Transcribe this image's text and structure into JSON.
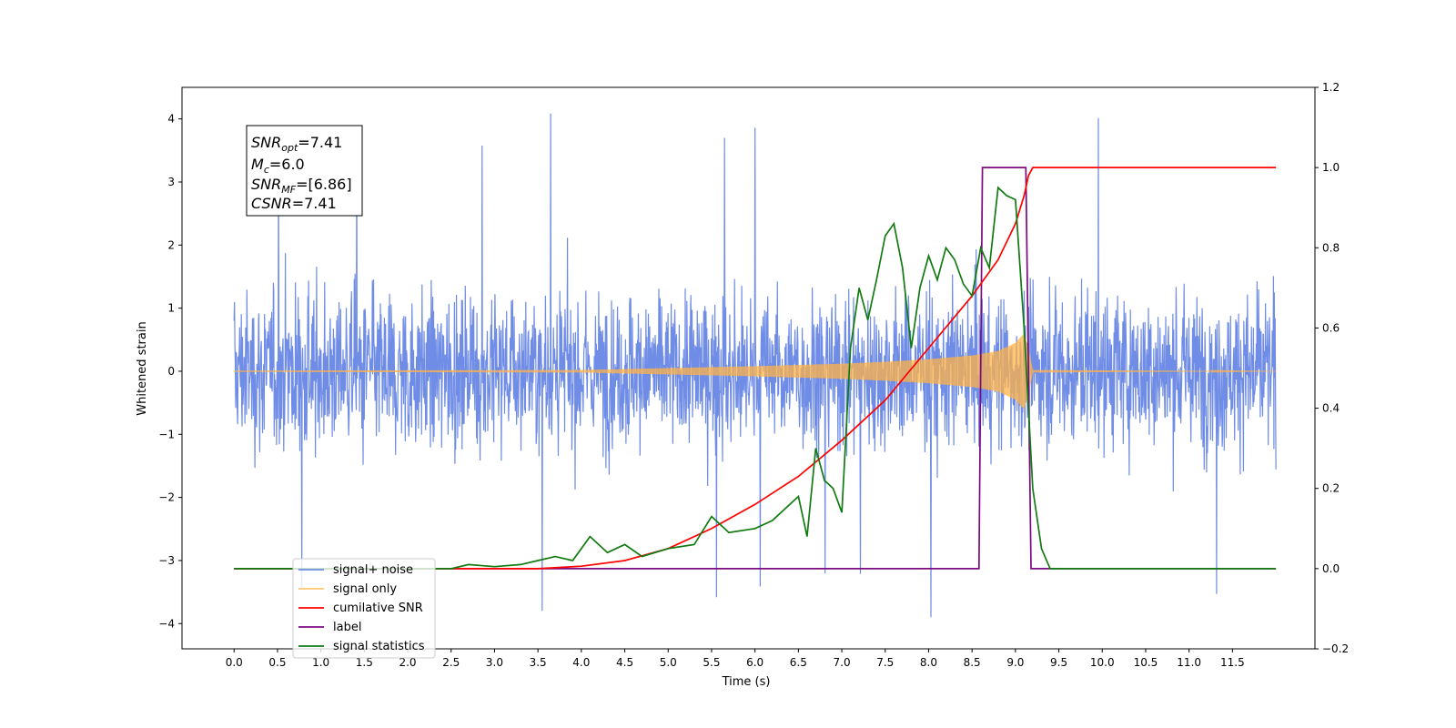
{
  "chart_data": {
    "type": "line",
    "xlabel": "Time (s)",
    "ylabel": "Whitened strain",
    "xlim": [
      -0.6,
      12.45
    ],
    "ylim": [
      -4.4,
      4.5
    ],
    "y2lim": [
      -0.2,
      1.2
    ],
    "grid": false,
    "legend_position": "lower-left",
    "x_ticks": [
      "0.0",
      "0.5",
      "1.0",
      "1.5",
      "2.0",
      "2.5",
      "3.0",
      "3.5",
      "4.0",
      "4.5",
      "5.0",
      "5.5",
      "6.0",
      "6.5",
      "7.0",
      "7.5",
      "8.0",
      "8.5",
      "9.0",
      "9.5",
      "10.0",
      "10.5",
      "11.0",
      "11.5"
    ],
    "y_ticks": [
      "4",
      "3",
      "2",
      "1",
      "0",
      "−1",
      "−2",
      "−3",
      "−4"
    ],
    "y2_ticks": [
      "1.2",
      "1.0",
      "0.8",
      "0.6",
      "0.4",
      "0.2",
      "0.0",
      "−0.2"
    ],
    "annotation": {
      "snr_opt": "=7.41",
      "mc": "=6.0",
      "snr_mf": "=[6.86]",
      "csnr": "=7.41"
    },
    "series": [
      {
        "name": "signal+ noise",
        "color": "#6f8ce6",
        "axis": "left",
        "description": "whitened noise, approx uniform spread between about -2.5 and 2.5 with spikes to 4.1 and -3.9",
        "x_range": [
          0.0,
          12.0
        ]
      },
      {
        "name": "signal only",
        "color": "#ffb347",
        "axis": "left",
        "envelope": {
          "x": [
            0.0,
            4.0,
            5.0,
            6.0,
            7.0,
            7.5,
            8.0,
            8.5,
            8.8,
            9.0,
            9.1,
            9.15,
            9.2,
            12.0
          ],
          "amp": [
            0.01,
            0.02,
            0.05,
            0.08,
            0.12,
            0.15,
            0.19,
            0.25,
            0.32,
            0.45,
            0.6,
            0.35,
            0.02,
            0.0
          ]
        }
      },
      {
        "name": "cumilative SNR",
        "color": "#ff0000",
        "axis": "right",
        "x": [
          0.0,
          3.5,
          4.0,
          4.5,
          5.0,
          5.5,
          6.0,
          6.5,
          7.0,
          7.5,
          8.0,
          8.5,
          8.8,
          9.0,
          9.1,
          9.15,
          9.2,
          12.0
        ],
        "y": [
          0.0,
          0.0,
          0.006,
          0.02,
          0.05,
          0.1,
          0.16,
          0.23,
          0.32,
          0.42,
          0.55,
          0.68,
          0.77,
          0.86,
          0.93,
          0.98,
          1.0,
          1.0
        ]
      },
      {
        "name": "label",
        "color": "#7b0a82",
        "axis": "right",
        "x": [
          0.0,
          8.58,
          8.62,
          9.12,
          9.18,
          12.0
        ],
        "y": [
          0.0,
          0.0,
          1.0,
          1.0,
          0.0,
          0.0
        ]
      },
      {
        "name": "signal statistics",
        "color": "#117a11",
        "axis": "right",
        "x": [
          0.0,
          2.5,
          2.7,
          3.0,
          3.3,
          3.5,
          3.7,
          3.9,
          4.1,
          4.3,
          4.5,
          4.7,
          5.0,
          5.3,
          5.5,
          5.7,
          6.0,
          6.2,
          6.5,
          6.6,
          6.7,
          6.8,
          6.9,
          7.0,
          7.1,
          7.2,
          7.3,
          7.4,
          7.5,
          7.6,
          7.7,
          7.8,
          7.9,
          8.0,
          8.1,
          8.2,
          8.3,
          8.4,
          8.5,
          8.6,
          8.7,
          8.8,
          8.9,
          9.0,
          9.1,
          9.2,
          9.3,
          9.4,
          9.5,
          12.0
        ],
        "y": [
          0.0,
          0.0,
          0.01,
          0.005,
          0.01,
          0.02,
          0.03,
          0.02,
          0.08,
          0.04,
          0.06,
          0.03,
          0.05,
          0.06,
          0.13,
          0.09,
          0.1,
          0.12,
          0.18,
          0.08,
          0.3,
          0.22,
          0.2,
          0.14,
          0.55,
          0.7,
          0.62,
          0.72,
          0.83,
          0.86,
          0.75,
          0.55,
          0.7,
          0.78,
          0.72,
          0.8,
          0.77,
          0.71,
          0.68,
          0.8,
          0.75,
          0.95,
          0.93,
          0.92,
          0.6,
          0.2,
          0.05,
          0.0,
          0.0,
          0.0
        ]
      }
    ]
  }
}
